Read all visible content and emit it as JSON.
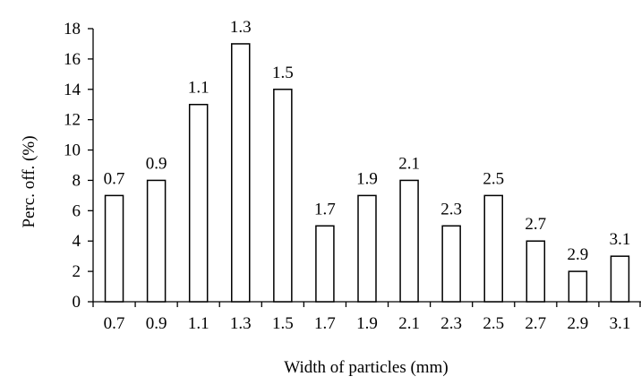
{
  "chart_data": {
    "type": "bar",
    "title": "",
    "xlabel": "Width of particles (mm)",
    "ylabel": "Perc. off. (%)",
    "ylim": [
      0,
      18
    ],
    "yticks": [
      "0",
      "2",
      "4",
      "6",
      "8",
      "10",
      "12",
      "14",
      "16",
      "18"
    ],
    "categories": [
      "0.7",
      "0.9",
      "1.1",
      "1.3",
      "1.5",
      "1.7",
      "1.9",
      "2.1",
      "2.3",
      "2.5",
      "2.7",
      "2.9",
      "3.1"
    ],
    "values": [
      7,
      8,
      13,
      17,
      14,
      5,
      7,
      8,
      5,
      7,
      4,
      2,
      3
    ],
    "data_labels": [
      "0.7",
      "0.9",
      "1.1",
      "1.3",
      "1.5",
      "1.7",
      "1.9",
      "2.1",
      "2.3",
      "2.5",
      "2.7",
      "2.9",
      "3.1"
    ],
    "grid": false,
    "legend": "none",
    "colors": {
      "bar_fill": "#ffffff",
      "bar_stroke": "#000000"
    }
  }
}
